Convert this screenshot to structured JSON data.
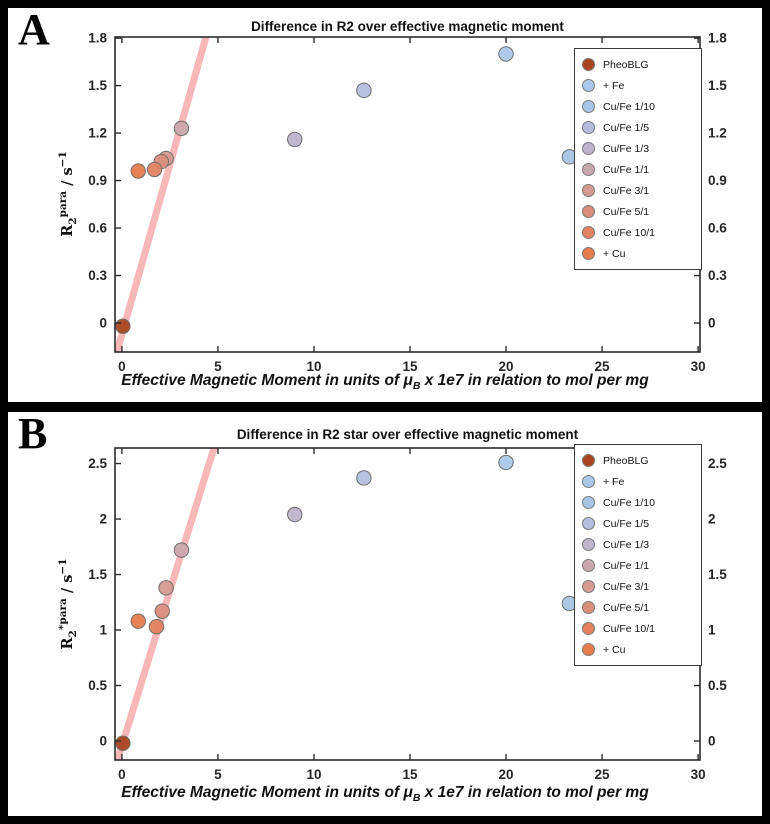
{
  "panels": [
    {
      "corner_label": "A",
      "ylabel": {
        "base": "R",
        "sub": "2",
        "sup": "para",
        "unit": " / s",
        "unit_sup": "−1"
      },
      "xlabel": {
        "pre": "Effective Magnetic Moment in units of ",
        "mu": "μ",
        "mu_sub": "B",
        "post": " x 1e7 in relation to mol per mg"
      }
    },
    {
      "corner_label": "B",
      "ylabel": {
        "base": "R",
        "sub": "2",
        "sup": "*para",
        "unit": " / s",
        "unit_sup": "−1"
      },
      "xlabel": {
        "pre": "Effective Magnetic Moment in units of ",
        "mu": "μ",
        "mu_sub": "B",
        "post": " x 1e7 in relation to mol per mg"
      }
    }
  ],
  "chart_data": [
    {
      "panel": "A",
      "type": "scatter",
      "title": "Difference in R2 over effective magnetic moment",
      "xlabel": "Effective Magnetic Moment in units of μB x 1e7 in relation to mol per mg",
      "ylabel": "R2 para / s^-1",
      "grid": false,
      "legend_position": "upper right",
      "xlim": [
        -0.36,
        30.1
      ],
      "ylim": [
        -0.183,
        1.807
      ],
      "xticks": [
        "0",
        "5",
        "10",
        "15",
        "20",
        "25",
        "30"
      ],
      "xtick_values": [
        0,
        5,
        10,
        15,
        20,
        25,
        30
      ],
      "yticks": [
        "0",
        "0.3",
        "0.6",
        "0.9",
        "1.2",
        "1.5",
        "1.8"
      ],
      "ytick_values": [
        0,
        0.3,
        0.6,
        0.9,
        1.2,
        1.5,
        1.8
      ],
      "trend_line": {
        "x1": -0.3,
        "y1": -0.2,
        "x2": 4.5,
        "y2": 1.86,
        "color": "#f69898",
        "width": 7,
        "opacity": 0.7
      },
      "series": [
        {
          "name": "PheoBLG",
          "color": "#a8441f",
          "x": 0.05,
          "y": -0.02
        },
        {
          "name": "+ Fe",
          "color": "#abc8e8",
          "x": 20.0,
          "y": 1.7
        },
        {
          "name": "Cu/Fe 1/10",
          "color": "#a9c5e4",
          "x": 23.3,
          "y": 1.05
        },
        {
          "name": "Cu/Fe 1/5",
          "color": "#b4bedb",
          "x": 12.6,
          "y": 1.47
        },
        {
          "name": "Cu/Fe 1/3",
          "color": "#beb4cb",
          "x": 9.0,
          "y": 1.16
        },
        {
          "name": "Cu/Fe 1/1",
          "color": "#c9a8ad",
          "x": 3.1,
          "y": 1.23
        },
        {
          "name": "Cu/Fe 3/1",
          "color": "#d49b91",
          "x": 2.3,
          "y": 1.04
        },
        {
          "name": "Cu/Fe 5/1",
          "color": "#db8e7c",
          "x": 2.05,
          "y": 1.02
        },
        {
          "name": "Cu/Fe 10/1",
          "color": "#e28260",
          "x": 1.7,
          "y": 0.97
        },
        {
          "name": "+ Cu",
          "color": "#e67c4d",
          "x": 0.85,
          "y": 0.96
        }
      ]
    },
    {
      "panel": "B",
      "type": "scatter",
      "title": "Difference in R2 star over effective magnetic moment",
      "xlabel": "Effective Magnetic Moment in units of μB x 1e7 in relation to mol per mg",
      "ylabel": "R2* para / s^-1",
      "grid": false,
      "legend_position": "upper right",
      "xlim": [
        -0.36,
        30.1
      ],
      "ylim": [
        -0.171,
        2.64
      ],
      "xticks": [
        "0",
        "5",
        "10",
        "15",
        "20",
        "25",
        "30"
      ],
      "xtick_values": [
        0,
        5,
        10,
        15,
        20,
        25,
        30
      ],
      "yticks": [
        "0",
        "0.5",
        "1",
        "1.5",
        "2",
        "2.5"
      ],
      "ytick_values": [
        0,
        0.5,
        1,
        1.5,
        2,
        2.5
      ],
      "trend_line": {
        "x1": -0.3,
        "y1": -0.21,
        "x2": 4.9,
        "y2": 2.7,
        "color": "#f69898",
        "width": 7,
        "opacity": 0.7
      },
      "series": [
        {
          "name": "PheoBLG",
          "color": "#a8441f",
          "x": 0.05,
          "y": -0.02
        },
        {
          "name": "+ Fe",
          "color": "#abc8e8",
          "x": 20.0,
          "y": 2.51
        },
        {
          "name": "Cu/Fe 1/10",
          "color": "#a9c5e4",
          "x": 23.3,
          "y": 1.24
        },
        {
          "name": "Cu/Fe 1/5",
          "color": "#b4bedb",
          "x": 12.6,
          "y": 2.37
        },
        {
          "name": "Cu/Fe 1/3",
          "color": "#beb4cb",
          "x": 9.0,
          "y": 2.04
        },
        {
          "name": "Cu/Fe 1/1",
          "color": "#c9a8ad",
          "x": 3.1,
          "y": 1.72
        },
        {
          "name": "Cu/Fe 3/1",
          "color": "#d49b91",
          "x": 2.3,
          "y": 1.38
        },
        {
          "name": "Cu/Fe 5/1",
          "color": "#db8e7c",
          "x": 2.1,
          "y": 1.17
        },
        {
          "name": "Cu/Fe 10/1",
          "color": "#e28260",
          "x": 1.8,
          "y": 1.03
        },
        {
          "name": "+ Cu",
          "color": "#e67c4d",
          "x": 0.85,
          "y": 1.08
        }
      ]
    }
  ]
}
